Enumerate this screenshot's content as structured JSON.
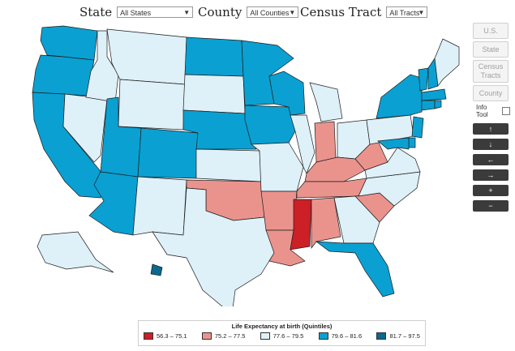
{
  "filters": {
    "state": {
      "label": "State",
      "value": "All States"
    },
    "county": {
      "label": "County",
      "value": "All Counties"
    },
    "tract": {
      "label": "Census Tract",
      "value": "All Tracts"
    }
  },
  "side_panel": {
    "geo_buttons": [
      "U.S.",
      "State",
      "Census Tracts",
      "County"
    ],
    "info_tool_label": "Info Tool",
    "nav_buttons": [
      {
        "name": "pan-up",
        "glyph": "↑"
      },
      {
        "name": "pan-down",
        "glyph": "↓"
      },
      {
        "name": "pan-left",
        "glyph": "←"
      },
      {
        "name": "pan-right",
        "glyph": "→"
      },
      {
        "name": "zoom-in",
        "glyph": "+"
      },
      {
        "name": "zoom-out",
        "glyph": "−"
      }
    ]
  },
  "legend": {
    "title": "Life Expectancy at birth (Quintiles)",
    "items": [
      {
        "label": "56.3 – 75.1",
        "color": "#cc1f26"
      },
      {
        "label": "75.2 – 77.5",
        "color": "#ea938d"
      },
      {
        "label": "77.6 – 79.5",
        "color": "#def0f8"
      },
      {
        "label": "79.6 – 81.6",
        "color": "#0aa0d2"
      },
      {
        "label": "81.7 – 97.5",
        "color": "#0b6890"
      }
    ]
  },
  "map": {
    "states": {
      "WA": 3,
      "OR": 3,
      "CA": 3,
      "NV": 2,
      "ID": 2,
      "MT": 2,
      "WY": 2,
      "UT": 3,
      "AZ": 3,
      "CO": 3,
      "NM": 2,
      "ND": 3,
      "SD": 2,
      "NE": 3,
      "KS": 2,
      "OK": 1,
      "TX": 2,
      "MN": 3,
      "IA": 3,
      "MO": 2,
      "AR": 1,
      "LA": 1,
      "WI": 3,
      "IL": 2,
      "MI": 2,
      "IN": 1,
      "OH": 2,
      "KY": 1,
      "TN": 1,
      "MS": 0,
      "AL": 1,
      "GA": 2,
      "FL": 3,
      "SC": 1,
      "NC": 2,
      "VA": 2,
      "WV": 1,
      "PA": 2,
      "NY": 3,
      "VT": 3,
      "NH": 3,
      "ME": 2,
      "MA": 3,
      "CT": 3,
      "RI": 3,
      "NJ": 3,
      "DE": 3,
      "MD": 3,
      "AK": 2,
      "HI": 4
    }
  }
}
